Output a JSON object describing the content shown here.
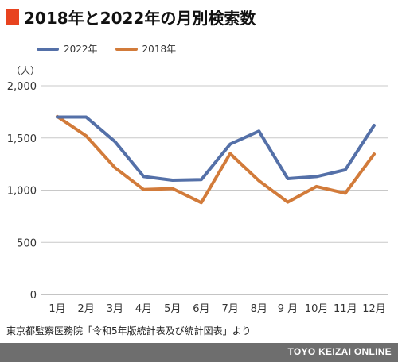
{
  "title": "2018年と2022年の月別検索数",
  "colors": {
    "title_marker": "#e8431f",
    "series_2022": "#5470a8",
    "series_2018": "#d27b3a",
    "grid": "#c8c8c8",
    "footer_bg": "#6e6e6e"
  },
  "unit_label": "（人）",
  "source": "東京都監察医務院「令和5年版統計表及び統計図表」より",
  "footer": "TOYO KEIZAI ONLINE",
  "chart_data": {
    "type": "line",
    "title": "2018年と2022年の月別検索数",
    "ylabel": "（人）",
    "xlabel": "",
    "categories": [
      "1月",
      "2月",
      "3月",
      "4月",
      "5月",
      "6月",
      "7月",
      "8月",
      "9 月",
      "10月",
      "11月",
      "12月"
    ],
    "ylim": [
      0,
      2000
    ],
    "yticks": [
      0,
      500,
      1000,
      1500,
      2000
    ],
    "ytick_labels": [
      "0",
      "500",
      "1,000",
      "1,500",
      "2,000"
    ],
    "grid": true,
    "legend_position": "top-left",
    "series": [
      {
        "name": "2022年",
        "color": "#5470a8",
        "values": [
          1700,
          1700,
          1465,
          1130,
          1095,
          1100,
          1440,
          1565,
          1110,
          1130,
          1195,
          1620
        ]
      },
      {
        "name": "2018年",
        "color": "#d27b3a",
        "values": [
          1705,
          1520,
          1215,
          1005,
          1015,
          880,
          1350,
          1090,
          885,
          1035,
          970,
          1345
        ]
      }
    ]
  }
}
